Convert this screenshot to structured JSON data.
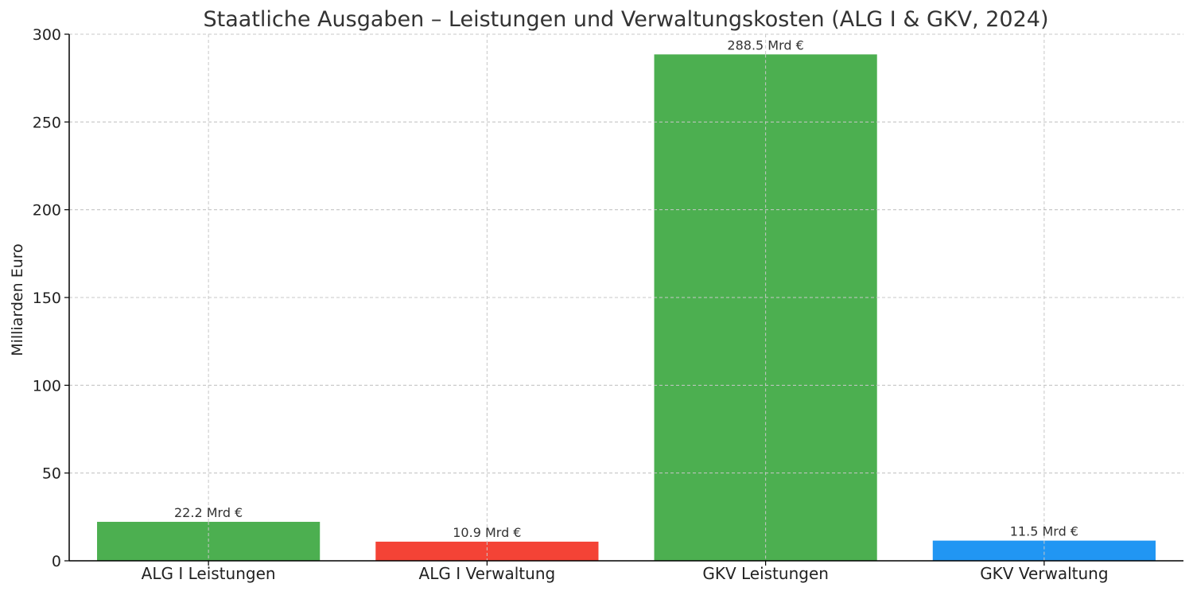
{
  "chart_data": {
    "type": "bar",
    "title": "Staatliche Ausgaben – Leistungen und Verwaltungskosten (ALG I & GKV, 2024)",
    "xlabel": "",
    "ylabel": "Milliarden Euro",
    "ylim": [
      0,
      300
    ],
    "yticks": [
      0,
      50,
      100,
      150,
      200,
      250,
      300
    ],
    "grid": true,
    "categories": [
      "ALG I Leistungen",
      "ALG I Verwaltung",
      "GKV Leistungen",
      "GKV Verwaltung"
    ],
    "values": [
      22.2,
      10.9,
      288.5,
      11.5
    ],
    "data_labels": [
      "22.2 Mrd €",
      "10.9 Mrd €",
      "288.5 Mrd €",
      "11.5 Mrd €"
    ],
    "colors": [
      "#4caf50",
      "#f44336",
      "#4caf50",
      "#2196f3"
    ]
  }
}
